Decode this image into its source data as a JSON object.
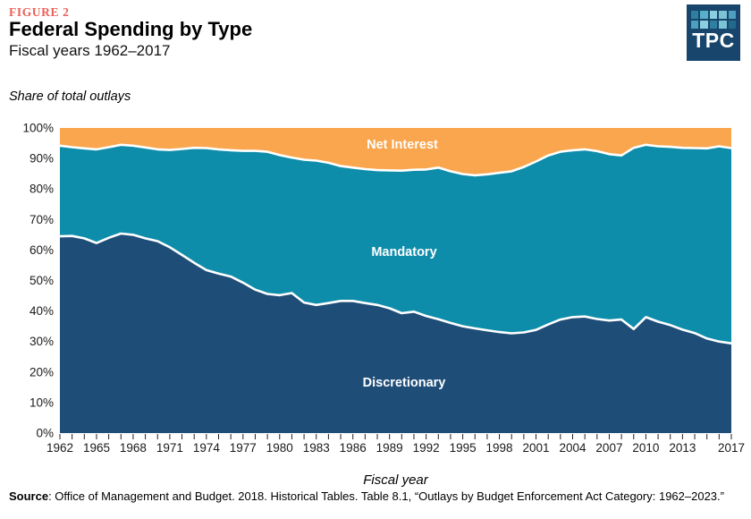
{
  "header": {
    "figure_label": "FIGURE 2",
    "title": "Federal Spending by Type",
    "subtitle": "Fiscal years 1962–2017"
  },
  "logo": {
    "text": "TPC",
    "background": "#17456B",
    "tile_colors": [
      "#2F7FA0",
      "#59AFC9",
      "#8AD0E0",
      "#7CC3D6",
      "#4C9FBE",
      "#4C9FBE",
      "#8AD0E0",
      "#2F7FA0",
      "#7CC3D6",
      "#226A8C"
    ]
  },
  "chart_data": {
    "type": "area",
    "stacked": true,
    "title": "Federal Spending by Type",
    "unit_label": "Share of total outlays",
    "xlabel": "Fiscal year",
    "ylabel": "",
    "ylim": [
      0,
      100
    ],
    "grid": false,
    "boundary_color": "#FFFFFF",
    "x": [
      1962,
      1963,
      1964,
      1965,
      1966,
      1967,
      1968,
      1969,
      1970,
      1971,
      1972,
      1973,
      1974,
      1975,
      1976,
      1977,
      1978,
      1979,
      1980,
      1981,
      1982,
      1983,
      1984,
      1985,
      1986,
      1987,
      1988,
      1989,
      1990,
      1991,
      1992,
      1993,
      1994,
      1995,
      1996,
      1997,
      1998,
      1999,
      2000,
      2001,
      2002,
      2003,
      2004,
      2005,
      2006,
      2007,
      2008,
      2009,
      2010,
      2011,
      2012,
      2013,
      2014,
      2015,
      2016,
      2017
    ],
    "x_tick_labels": [
      1962,
      1965,
      1968,
      1971,
      1974,
      1977,
      1980,
      1983,
      1986,
      1989,
      1992,
      1995,
      1998,
      2001,
      2004,
      2007,
      2010,
      2013,
      2017
    ],
    "y_ticks": [
      "0%",
      "10%",
      "20%",
      "30%",
      "40%",
      "50%",
      "60%",
      "70%",
      "80%",
      "90%",
      "100%"
    ],
    "series": [
      {
        "name": "Discretionary",
        "color": "#1E4D78",
        "values": [
          64.5,
          64.6,
          63.8,
          62.3,
          64.0,
          65.4,
          65.0,
          63.8,
          62.9,
          60.9,
          58.4,
          55.8,
          53.4,
          52.3,
          51.3,
          49.3,
          47.0,
          45.6,
          45.2,
          45.9,
          42.8,
          42.0,
          42.6,
          43.3,
          43.3,
          42.6,
          42.0,
          40.9,
          39.3,
          39.8,
          38.4,
          37.3,
          36.1,
          35.0,
          34.3,
          33.7,
          33.1,
          32.7,
          33.0,
          33.8,
          35.6,
          37.2,
          38.0,
          38.2,
          37.4,
          36.9,
          37.2,
          34.1,
          38.0,
          36.5,
          35.4,
          33.9,
          32.8,
          31.0,
          30.0,
          29.4
        ]
      },
      {
        "name": "Mandatory",
        "color": "#0E8DAB",
        "values": [
          29.7,
          29.1,
          29.5,
          30.7,
          29.7,
          29.1,
          29.2,
          29.8,
          30.1,
          31.9,
          34.7,
          37.7,
          40.0,
          40.7,
          41.4,
          43.2,
          45.5,
          46.6,
          45.9,
          44.4,
          46.8,
          47.3,
          46.0,
          44.2,
          43.7,
          43.9,
          44.2,
          45.2,
          46.7,
          46.5,
          48.0,
          49.7,
          49.7,
          49.9,
          50.2,
          51.1,
          52.2,
          53.1,
          54.2,
          55.2,
          55.4,
          55.0,
          54.7,
          54.8,
          55.0,
          54.5,
          53.8,
          59.4,
          56.5,
          57.5,
          58.4,
          59.6,
          60.6,
          62.3,
          64.0,
          64.0
        ]
      },
      {
        "name": "Net Interest",
        "color": "#F9A64E",
        "values": [
          5.8,
          6.3,
          6.7,
          7.0,
          6.3,
          5.5,
          5.8,
          6.4,
          7.0,
          7.2,
          6.9,
          6.5,
          6.6,
          7.0,
          7.3,
          7.5,
          7.5,
          7.8,
          8.9,
          9.7,
          10.4,
          10.7,
          11.4,
          12.5,
          13.0,
          13.5,
          13.8,
          13.9,
          14.0,
          13.7,
          13.6,
          13.0,
          14.2,
          15.1,
          15.5,
          15.2,
          14.7,
          14.2,
          12.8,
          11.0,
          9.0,
          7.8,
          7.3,
          7.0,
          7.6,
          8.6,
          9.0,
          6.5,
          5.5,
          6.0,
          6.2,
          6.5,
          6.6,
          6.7,
          6.0,
          6.6
        ]
      }
    ]
  },
  "x_axis_title": "Fiscal year",
  "source": {
    "label": "Source",
    "text": ": Office of Management and Budget. 2018. Historical Tables. Table 8.1, “Outlays by Budget Enforcement Act Category: 1962–2023.”"
  }
}
